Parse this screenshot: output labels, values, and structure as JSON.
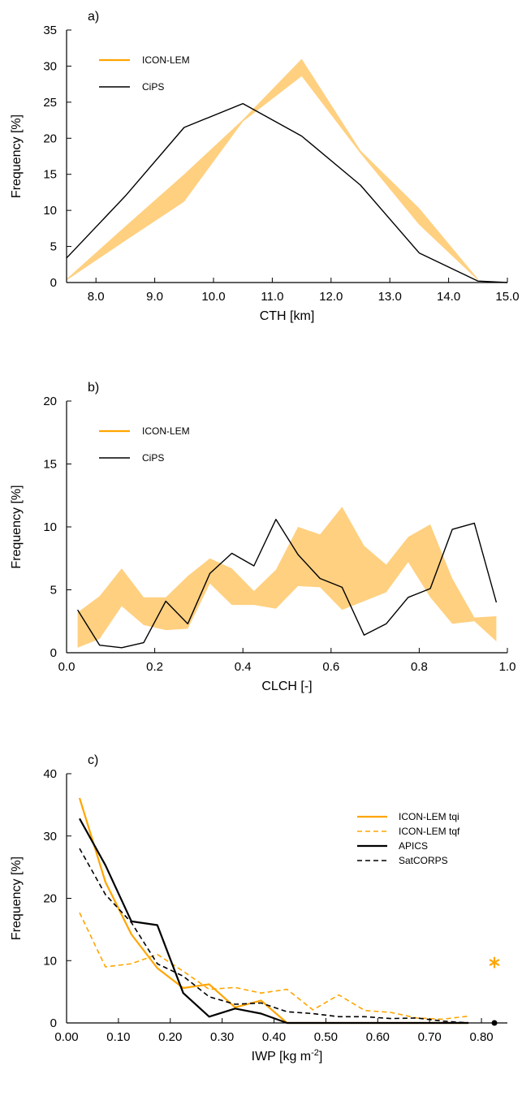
{
  "colors": {
    "icon": "#ffa500",
    "band": "#ffd080",
    "obs": "#000000"
  },
  "chart_data": [
    {
      "type": "area",
      "panel_label": "a)",
      "xlabel": "CTH [km]",
      "ylabel": "Frequency [%]",
      "xlim": [
        7.5,
        15.0
      ],
      "ylim": [
        0,
        35
      ],
      "xticks": [
        8.0,
        9.0,
        10.0,
        11.0,
        12.0,
        13.0,
        14.0,
        15.0
      ],
      "xtick_labels": [
        "8.0",
        "9.0",
        "10.0",
        "11.0",
        "12.0",
        "13.0",
        "14.0",
        "15.0"
      ],
      "yticks": [
        0,
        5,
        10,
        15,
        20,
        25,
        30,
        35
      ],
      "ytick_labels": [
        "0",
        "5",
        "10",
        "15",
        "20",
        "25",
        "30",
        "35"
      ],
      "legend": "top-left",
      "band": {
        "name": "ICON-LEM",
        "x": [
          7.5,
          8.5,
          9.5,
          10.5,
          11.5,
          12.5,
          13.5,
          14.5
        ],
        "lower": [
          0.3,
          5.8,
          11.2,
          22.3,
          28.6,
          17.9,
          8.0,
          0.3
        ],
        "upper": [
          0.5,
          7.8,
          15.0,
          22.6,
          31.0,
          18.3,
          10.3,
          0.5
        ]
      },
      "series": [
        {
          "name": "CiPS",
          "style": "solid",
          "x": [
            7.5,
            8.5,
            9.5,
            10.5,
            11.5,
            12.5,
            13.5,
            14.5,
            15.0
          ],
          "values": [
            3.4,
            12.0,
            21.5,
            24.8,
            20.3,
            13.5,
            4.1,
            0.2,
            0.0
          ]
        }
      ]
    },
    {
      "type": "area",
      "panel_label": "b)",
      "xlabel": "CLCH [-]",
      "ylabel": "Frequency [%]",
      "xlim": [
        0.0,
        1.0
      ],
      "ylim": [
        0,
        20
      ],
      "xticks": [
        0.0,
        0.2,
        0.4,
        0.6,
        0.8,
        1.0
      ],
      "xtick_labels": [
        "0.0",
        "0.2",
        "0.4",
        "0.6",
        "0.8",
        "1.0"
      ],
      "yticks": [
        0,
        5,
        10,
        15,
        20
      ],
      "ytick_labels": [
        "0",
        "5",
        "10",
        "15",
        "20"
      ],
      "legend": "top-left",
      "band": {
        "name": "ICON-LEM",
        "x": [
          0.025,
          0.075,
          0.125,
          0.175,
          0.225,
          0.275,
          0.325,
          0.375,
          0.425,
          0.475,
          0.525,
          0.575,
          0.625,
          0.675,
          0.725,
          0.775,
          0.825,
          0.875,
          0.925,
          0.975
        ],
        "lower": [
          0.4,
          1.1,
          3.7,
          2.2,
          1.8,
          1.9,
          5.5,
          3.8,
          3.8,
          3.5,
          5.3,
          5.2,
          3.4,
          4.1,
          4.8,
          7.2,
          4.4,
          2.3,
          2.5,
          0.9
        ],
        "upper": [
          3.2,
          4.5,
          6.7,
          4.4,
          4.4,
          6.1,
          7.5,
          6.7,
          4.9,
          6.6,
          10.0,
          9.4,
          11.6,
          8.5,
          7.0,
          9.2,
          10.2,
          5.9,
          2.8,
          2.9
        ]
      },
      "series": [
        {
          "name": "CiPS",
          "style": "solid",
          "x": [
            0.025,
            0.075,
            0.125,
            0.175,
            0.225,
            0.275,
            0.325,
            0.375,
            0.425,
            0.475,
            0.525,
            0.575,
            0.625,
            0.675,
            0.725,
            0.775,
            0.825,
            0.875,
            0.925,
            0.975
          ],
          "values": [
            3.4,
            0.6,
            0.4,
            0.8,
            4.1,
            2.3,
            6.3,
            7.9,
            6.9,
            10.6,
            7.8,
            5.9,
            5.2,
            1.4,
            2.3,
            4.4,
            5.1,
            9.8,
            10.3,
            4.0
          ]
        }
      ]
    },
    {
      "type": "line",
      "panel_label": "c)",
      "xlabel_main": "IWP [kg m",
      "xlabel_sup": "-2",
      "xlabel_end": "]",
      "ylabel": "Frequency [%]",
      "xlim": [
        0.0,
        0.85
      ],
      "ylim": [
        0,
        40
      ],
      "xticks": [
        0.0,
        0.1,
        0.2,
        0.3,
        0.4,
        0.5,
        0.6,
        0.7,
        0.8
      ],
      "xtick_labels": [
        "0.00",
        "0.10",
        "0.20",
        "0.30",
        "0.40",
        "0.50",
        "0.60",
        "0.70",
        "0.80"
      ],
      "yticks": [
        0,
        10,
        20,
        30,
        40
      ],
      "ytick_labels": [
        "0",
        "10",
        "20",
        "30",
        "40"
      ],
      "legend": "top-right",
      "series": [
        {
          "name": "ICON-LEM tqi",
          "color": "#ffa500",
          "style": "solid",
          "width": 2.2,
          "x": [
            0.025,
            0.075,
            0.125,
            0.175,
            0.225,
            0.275,
            0.325,
            0.375,
            0.425,
            0.475,
            0.525,
            0.575,
            0.625,
            0.675,
            0.725,
            0.775
          ],
          "values": [
            36.1,
            22.6,
            14.2,
            8.8,
            5.6,
            6.2,
            2.5,
            3.6,
            0.0,
            0.0,
            0.0,
            0.0,
            0.0,
            0.0,
            0.0,
            0.0
          ]
        },
        {
          "name": "ICON-LEM tqf",
          "color": "#ffa500",
          "style": "dashed",
          "width": 1.6,
          "x": [
            0.025,
            0.075,
            0.125,
            0.175,
            0.225,
            0.275,
            0.325,
            0.375,
            0.425,
            0.475,
            0.525,
            0.575,
            0.625,
            0.675,
            0.725,
            0.775
          ],
          "values": [
            17.7,
            9.0,
            9.5,
            11.0,
            8.3,
            5.4,
            5.7,
            4.8,
            5.4,
            2.1,
            4.5,
            2.0,
            1.7,
            0.8,
            0.6,
            1.1
          ]
        },
        {
          "name": "APICS",
          "color": "#000000",
          "style": "solid",
          "width": 2.2,
          "x": [
            0.025,
            0.075,
            0.125,
            0.175,
            0.225,
            0.275,
            0.325,
            0.375,
            0.425,
            0.475,
            0.525,
            0.575,
            0.625,
            0.675,
            0.725,
            0.775
          ],
          "values": [
            32.8,
            25.3,
            16.3,
            15.7,
            4.8,
            1.0,
            2.3,
            1.5,
            0.0,
            0.0,
            0.0,
            0.0,
            0.0,
            0.0,
            0.0,
            0.0
          ]
        },
        {
          "name": "SatCORPS",
          "color": "#000000",
          "style": "dashed",
          "width": 1.6,
          "x": [
            0.025,
            0.075,
            0.125,
            0.175,
            0.225,
            0.275,
            0.325,
            0.375,
            0.425,
            0.475,
            0.525,
            0.575,
            0.625,
            0.675,
            0.725,
            0.775
          ],
          "values": [
            28.0,
            20.6,
            16.1,
            9.5,
            7.5,
            4.2,
            3.0,
            3.2,
            1.8,
            1.5,
            1.0,
            1.0,
            0.7,
            0.8,
            0.3,
            0.0
          ]
        }
      ],
      "markers": [
        {
          "x": 0.825,
          "y": 9.7,
          "symbol": "asterisk",
          "color": "#ffa500"
        },
        {
          "x": 0.825,
          "y": 0.0,
          "symbol": "dot",
          "color": "#000000"
        }
      ]
    }
  ]
}
